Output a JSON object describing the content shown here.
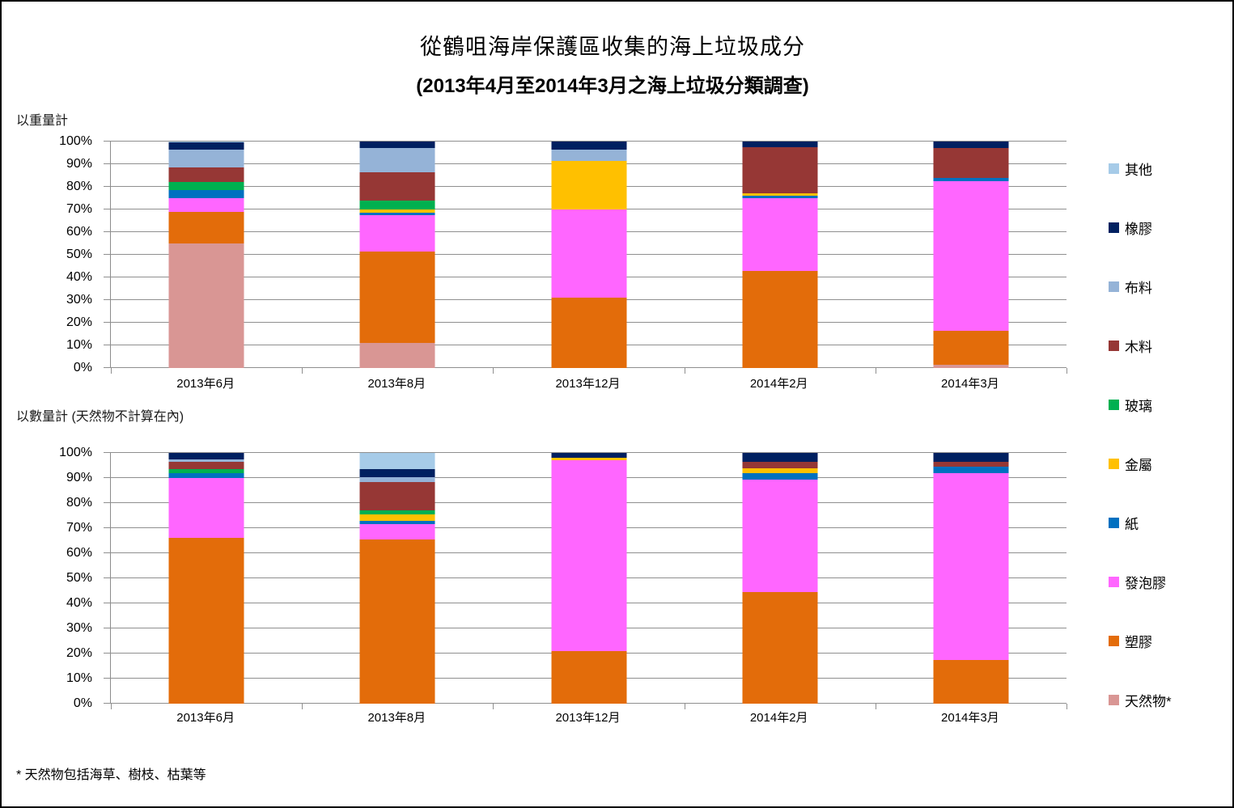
{
  "title": {
    "line1": "從鶴咀海岸保護區收集的海上垃圾成分",
    "line2": "(2013年4月至2014年3月之海上垃圾分類調查)"
  },
  "footnote": "* 天然物包括海草、樹枝、枯葉等",
  "legend": {
    "position": "right",
    "items": [
      {
        "label": "其他",
        "color": "#A6CBE8"
      },
      {
        "label": "橡膠",
        "color": "#002060"
      },
      {
        "label": "布料",
        "color": "#95B3D7"
      },
      {
        "label": "木料",
        "color": "#963735"
      },
      {
        "label": "玻璃",
        "color": "#00B050"
      },
      {
        "label": "金屬",
        "color": "#FFC000"
      },
      {
        "label": "紙",
        "color": "#0070C0"
      },
      {
        "label": "發泡膠",
        "color": "#FF66FF"
      },
      {
        "label": "塑膠",
        "color": "#E36C0A"
      },
      {
        "label": "天然物*",
        "color": "#D99694"
      }
    ]
  },
  "chart_data": [
    {
      "id": "by-weight",
      "type": "bar",
      "stacked": true,
      "section_label": "以重量計",
      "unit": "percent",
      "ylim": [
        0,
        100
      ],
      "grid": true,
      "yticks": [
        "0%",
        "10%",
        "20%",
        "30%",
        "40%",
        "50%",
        "60%",
        "70%",
        "80%",
        "90%",
        "100%"
      ],
      "categories": [
        "2013年6月",
        "2013年8月",
        "2013年12月",
        "2014年2月",
        "2014年3月"
      ],
      "series": [
        {
          "name": "天然物*",
          "color": "#D99694",
          "values": [
            55,
            11,
            0,
            0,
            1.5
          ]
        },
        {
          "name": "塑膠",
          "color": "#E36C0A",
          "values": [
            14,
            40.5,
            31,
            43,
            15
          ]
        },
        {
          "name": "發泡膠",
          "color": "#FF66FF",
          "values": [
            6,
            16,
            39,
            32,
            66
          ]
        },
        {
          "name": "紙",
          "color": "#0070C0",
          "values": [
            3.5,
            1,
            0,
            1,
            1.5
          ]
        },
        {
          "name": "金屬",
          "color": "#FFC000",
          "values": [
            0,
            1.5,
            21.5,
            1,
            0
          ]
        },
        {
          "name": "玻璃",
          "color": "#00B050",
          "values": [
            3.5,
            4,
            0,
            0,
            0
          ]
        },
        {
          "name": "木料",
          "color": "#963735",
          "values": [
            6.5,
            12.5,
            0,
            20.5,
            13
          ]
        },
        {
          "name": "布料",
          "color": "#95B3D7",
          "values": [
            8,
            10.5,
            5,
            0,
            0
          ]
        },
        {
          "name": "橡膠",
          "color": "#002060",
          "values": [
            3,
            3,
            3.5,
            2.5,
            3
          ]
        },
        {
          "name": "其他",
          "color": "#A6CBE8",
          "values": [
            0.5,
            0,
            0,
            0,
            0
          ]
        }
      ]
    },
    {
      "id": "by-count",
      "type": "bar",
      "stacked": true,
      "section_label": "以數量計 (天然物不計算在內)",
      "unit": "percent",
      "ylim": [
        0,
        100
      ],
      "grid": true,
      "yticks": [
        "0%",
        "10%",
        "20%",
        "30%",
        "40%",
        "50%",
        "60%",
        "70%",
        "80%",
        "90%",
        "100%"
      ],
      "categories": [
        "2013年6月",
        "2013年8月",
        "2013年12月",
        "2014年2月",
        "2014年3月"
      ],
      "series": [
        {
          "name": "天然物*",
          "color": "#D99694",
          "values": [
            0,
            0,
            0,
            0,
            0
          ]
        },
        {
          "name": "塑膠",
          "color": "#E36C0A",
          "values": [
            66,
            65.5,
            21,
            44.5,
            17.5
          ]
        },
        {
          "name": "發泡膠",
          "color": "#FF66FF",
          "values": [
            24,
            6,
            76,
            45,
            74.5
          ]
        },
        {
          "name": "紙",
          "color": "#0070C0",
          "values": [
            2,
            1.5,
            0,
            2.5,
            2.5
          ]
        },
        {
          "name": "金屬",
          "color": "#FFC000",
          "values": [
            0,
            2.5,
            1,
            2,
            0
          ]
        },
        {
          "name": "玻璃",
          "color": "#00B050",
          "values": [
            1.5,
            1.5,
            0,
            0,
            0
          ]
        },
        {
          "name": "木料",
          "color": "#963735",
          "values": [
            3,
            11.5,
            0,
            2.5,
            2
          ]
        },
        {
          "name": "布料",
          "color": "#95B3D7",
          "values": [
            1,
            2,
            0,
            0,
            0
          ]
        },
        {
          "name": "橡膠",
          "color": "#002060",
          "values": [
            2.5,
            3,
            2,
            3.5,
            3.5
          ]
        },
        {
          "name": "其他",
          "color": "#A6CBE8",
          "values": [
            0,
            6.5,
            0,
            0,
            0
          ]
        }
      ]
    }
  ]
}
